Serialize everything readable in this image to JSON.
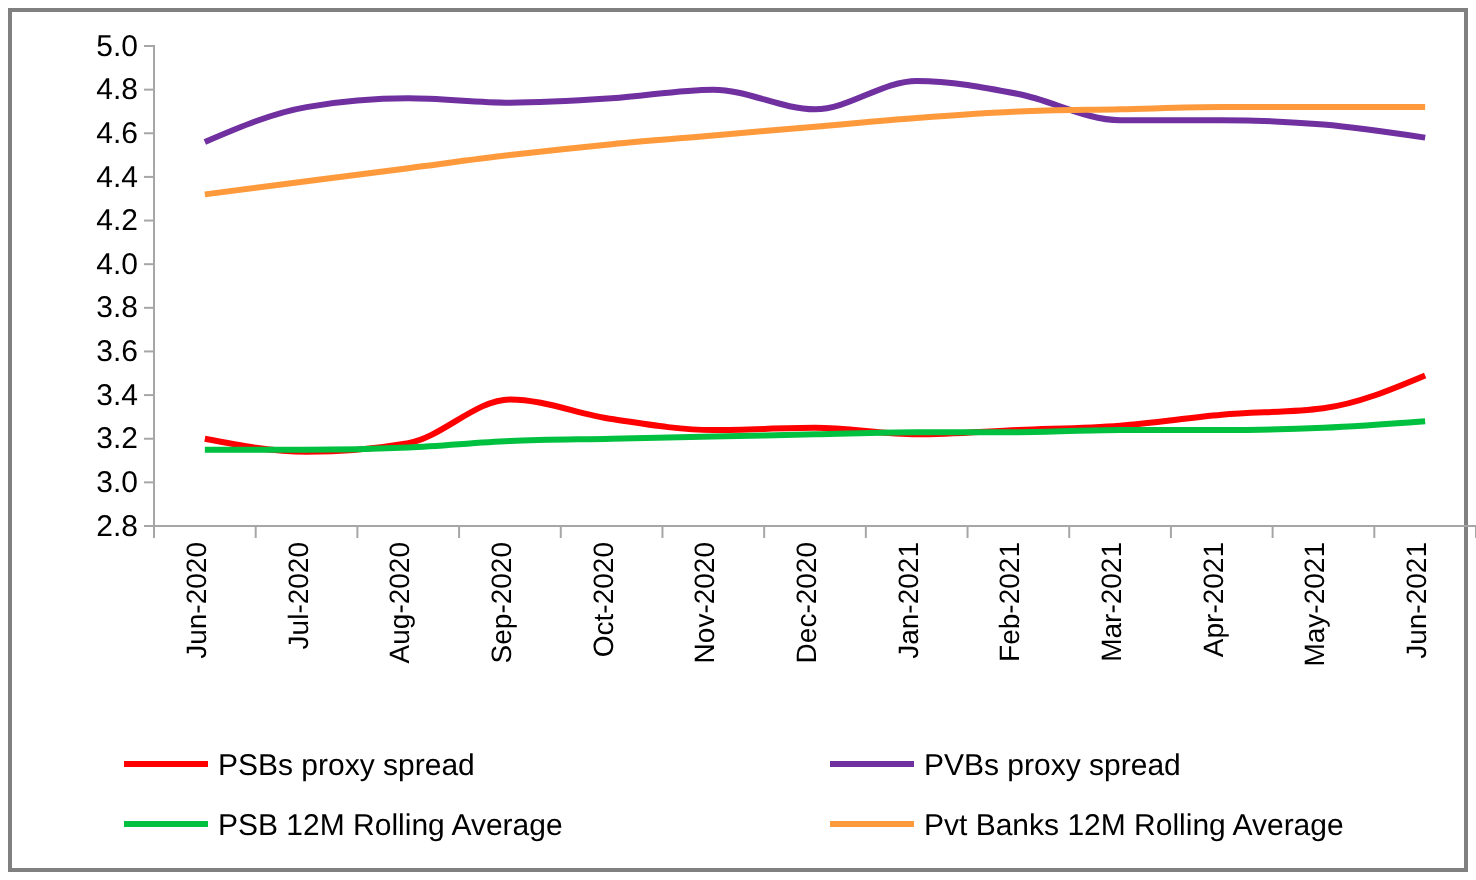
{
  "chart_data": {
    "type": "line",
    "categories": [
      "Jun-2020",
      "Jul-2020",
      "Aug-2020",
      "Sep-2020",
      "Oct-2020",
      "Nov-2020",
      "Dec-2020",
      "Jan-2021",
      "Feb-2021",
      "Mar-2021",
      "Apr-2021",
      "May-2021",
      "Jun-2021"
    ],
    "series": [
      {
        "name": "PSBs proxy spread",
        "color": "#ff0000",
        "values": [
          3.2,
          3.14,
          3.18,
          3.38,
          3.29,
          3.24,
          3.25,
          3.22,
          3.24,
          3.26,
          3.31,
          3.34,
          3.49
        ]
      },
      {
        "name": "PVBs proxy spread",
        "color": "#7030a0",
        "values": [
          4.56,
          4.72,
          4.76,
          4.74,
          4.76,
          4.8,
          4.71,
          4.84,
          4.78,
          4.66,
          4.66,
          4.64,
          4.58
        ]
      },
      {
        "name": "PSB 12M Rolling Average",
        "color": "#00c040",
        "values": [
          3.15,
          3.15,
          3.16,
          3.19,
          3.2,
          3.21,
          3.22,
          3.23,
          3.23,
          3.24,
          3.24,
          3.25,
          3.28
        ]
      },
      {
        "name": "Pvt Banks 12M Rolling Average",
        "color": "#ff9a3c",
        "values": [
          4.32,
          4.38,
          4.44,
          4.5,
          4.55,
          4.59,
          4.63,
          4.67,
          4.7,
          4.71,
          4.72,
          4.72,
          4.72
        ]
      }
    ],
    "ylim": [
      2.8,
      5.0
    ],
    "yticks": [
      {
        "value": 2.8,
        "label": "2.8"
      },
      {
        "value": 3.0,
        "label": "3.0"
      },
      {
        "value": 3.2,
        "label": "3.2"
      },
      {
        "value": 3.4,
        "label": "3.4"
      },
      {
        "value": 3.6,
        "label": "3.6"
      },
      {
        "value": 3.8,
        "label": "3.8"
      },
      {
        "value": 4.0,
        "label": "4.0"
      },
      {
        "value": 4.2,
        "label": "4.2"
      },
      {
        "value": 4.4,
        "label": "4.4"
      },
      {
        "value": 4.6,
        "label": "4.6"
      },
      {
        "value": 4.8,
        "label": "4.8"
      },
      {
        "value": 5.0,
        "label": "5.0"
      }
    ],
    "grid": false,
    "legend": "bottom",
    "marker": "none",
    "line_style": "solid"
  }
}
